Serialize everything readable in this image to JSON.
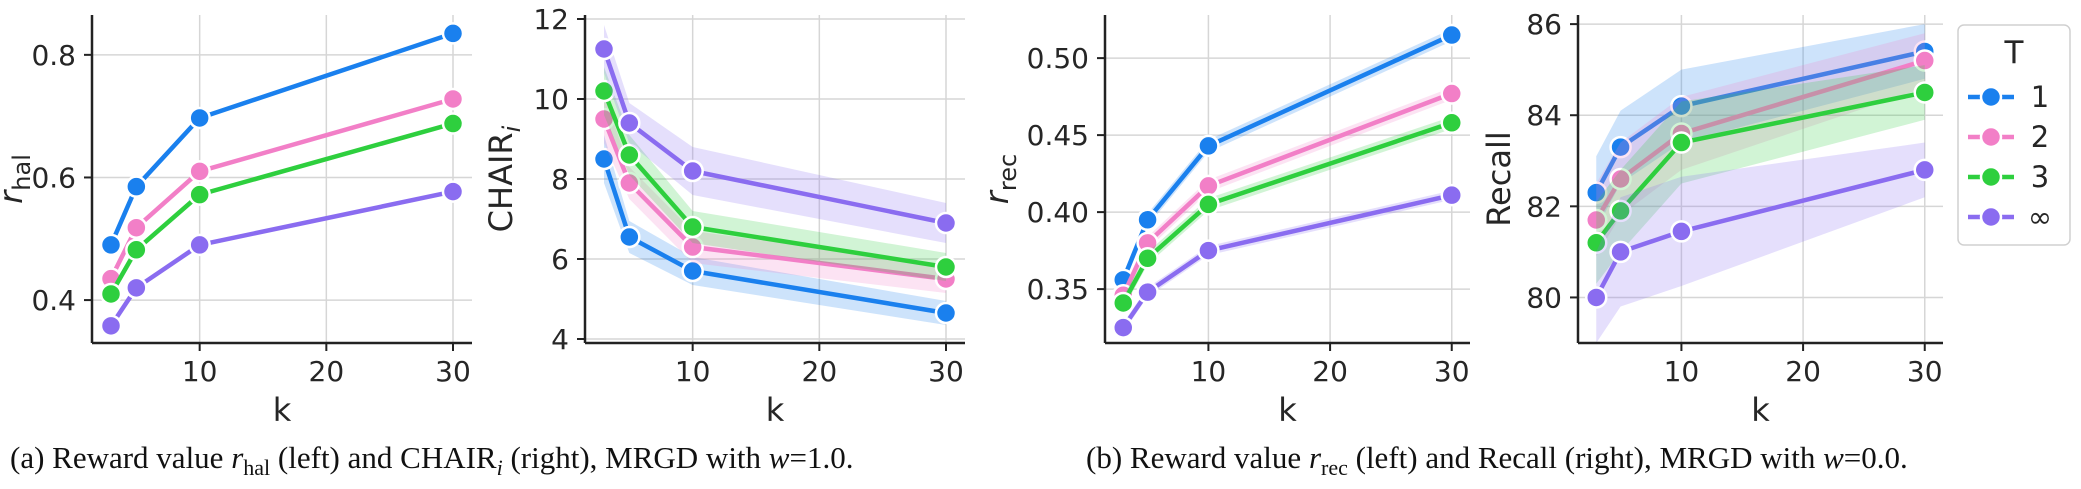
{
  "chart_data": [
    {
      "type": "line",
      "xlabel": "k",
      "ylabel": "r_hal",
      "xlim": [
        1.5,
        31.5
      ],
      "ylim": [
        0.33,
        0.865
      ],
      "xticks": [
        10,
        20,
        30
      ],
      "yticks": [
        0.4,
        0.6,
        0.8
      ],
      "grid": true,
      "x": [
        3,
        5,
        10,
        30
      ],
      "series": [
        {
          "name": "1",
          "values": [
            0.49,
            0.585,
            0.697,
            0.835
          ],
          "band": 0.003
        },
        {
          "name": "2",
          "values": [
            0.435,
            0.518,
            0.61,
            0.728
          ],
          "band": 0.003
        },
        {
          "name": "3",
          "values": [
            0.41,
            0.482,
            0.572,
            0.688
          ],
          "band": 0.003
        },
        {
          "name": "∞",
          "values": [
            0.358,
            0.42,
            0.49,
            0.577
          ],
          "band": 0.003
        }
      ]
    },
    {
      "type": "line",
      "xlabel": "k",
      "ylabel": "CHAIR_i",
      "xlim": [
        1.5,
        31.5
      ],
      "ylim": [
        3.9,
        12.1
      ],
      "xticks": [
        10,
        20,
        30
      ],
      "yticks": [
        4,
        6,
        8,
        10,
        12
      ],
      "grid": true,
      "x": [
        3,
        5,
        10,
        30
      ],
      "series": [
        {
          "name": "1",
          "values": [
            8.5,
            6.55,
            5.7,
            4.65
          ],
          "band": [
            0.6,
            0.4,
            0.35,
            0.3
          ]
        },
        {
          "name": "2",
          "values": [
            9.5,
            7.9,
            6.3,
            5.5
          ],
          "band": [
            0.6,
            0.4,
            0.4,
            0.35
          ]
        },
        {
          "name": "3",
          "values": [
            10.2,
            8.6,
            6.8,
            5.8
          ],
          "band": [
            0.6,
            0.5,
            0.4,
            0.35
          ]
        },
        {
          "name": "∞",
          "values": [
            11.25,
            9.4,
            8.2,
            6.9
          ],
          "band": [
            0.6,
            0.5,
            0.6,
            0.5
          ]
        }
      ]
    },
    {
      "type": "line",
      "xlabel": "k",
      "ylabel": "r_rec",
      "xlim": [
        1.5,
        31.5
      ],
      "ylim": [
        0.315,
        0.528
      ],
      "xticks": [
        10,
        20,
        30
      ],
      "yticks": [
        0.35,
        0.4,
        0.45,
        0.5
      ],
      "yticklabels": [
        "0.35",
        "0.40",
        "0.45",
        "0.50"
      ],
      "grid": true,
      "x": [
        3,
        5,
        10,
        30
      ],
      "series": [
        {
          "name": "1",
          "values": [
            0.356,
            0.395,
            0.443,
            0.515
          ],
          "band": 0.004
        },
        {
          "name": "2",
          "values": [
            0.346,
            0.38,
            0.417,
            0.477
          ],
          "band": 0.004
        },
        {
          "name": "3",
          "values": [
            0.341,
            0.37,
            0.405,
            0.458
          ],
          "band": 0.004
        },
        {
          "name": "∞",
          "values": [
            0.325,
            0.348,
            0.375,
            0.411
          ],
          "band": 0.003
        }
      ]
    },
    {
      "type": "line",
      "xlabel": "k",
      "ylabel": "Recall",
      "xlim": [
        1.5,
        31.5
      ],
      "ylim": [
        79.0,
        86.2
      ],
      "xticks": [
        10,
        20,
        30
      ],
      "yticks": [
        80,
        82,
        84,
        86
      ],
      "grid": true,
      "x": [
        3,
        5,
        10,
        30
      ],
      "series": [
        {
          "name": "1",
          "values": [
            82.3,
            83.3,
            84.2,
            85.4
          ],
          "band": [
            0.8,
            0.8,
            0.8,
            0.6
          ]
        },
        {
          "name": "2",
          "values": [
            81.7,
            82.6,
            83.6,
            85.2
          ],
          "band": [
            0.8,
            0.8,
            0.8,
            0.6
          ]
        },
        {
          "name": "3",
          "values": [
            81.2,
            81.9,
            83.4,
            84.5
          ],
          "band": [
            0.9,
            0.9,
            0.9,
            0.6
          ]
        },
        {
          "name": "∞",
          "values": [
            80.0,
            81.0,
            81.45,
            82.8
          ],
          "band": [
            1.0,
            1.2,
            1.2,
            0.6
          ]
        }
      ]
    }
  ],
  "colors": [
    "#1a80ee",
    "#f27fc7",
    "#2ecf3e",
    "#8a6cf0"
  ],
  "legend": {
    "title": "T",
    "placement": "right",
    "entries": [
      "1",
      "2",
      "3",
      "∞"
    ]
  },
  "captions": {
    "a_prefix": "(a) Reward value ",
    "a_sym": "r",
    "a_sub": "hal",
    "a_mid": " (left) and CHAIR",
    "a_sub2": "i",
    "a_suffix": " (right), MRGD with ",
    "a_w": "w",
    "a_end": "=1.0.",
    "b_prefix": "(b) Reward value ",
    "b_sym": "r",
    "b_sub": "rec",
    "b_mid": " (left) and Recall (right), MRGD with ",
    "b_w": "w",
    "b_end": "=0.0."
  }
}
